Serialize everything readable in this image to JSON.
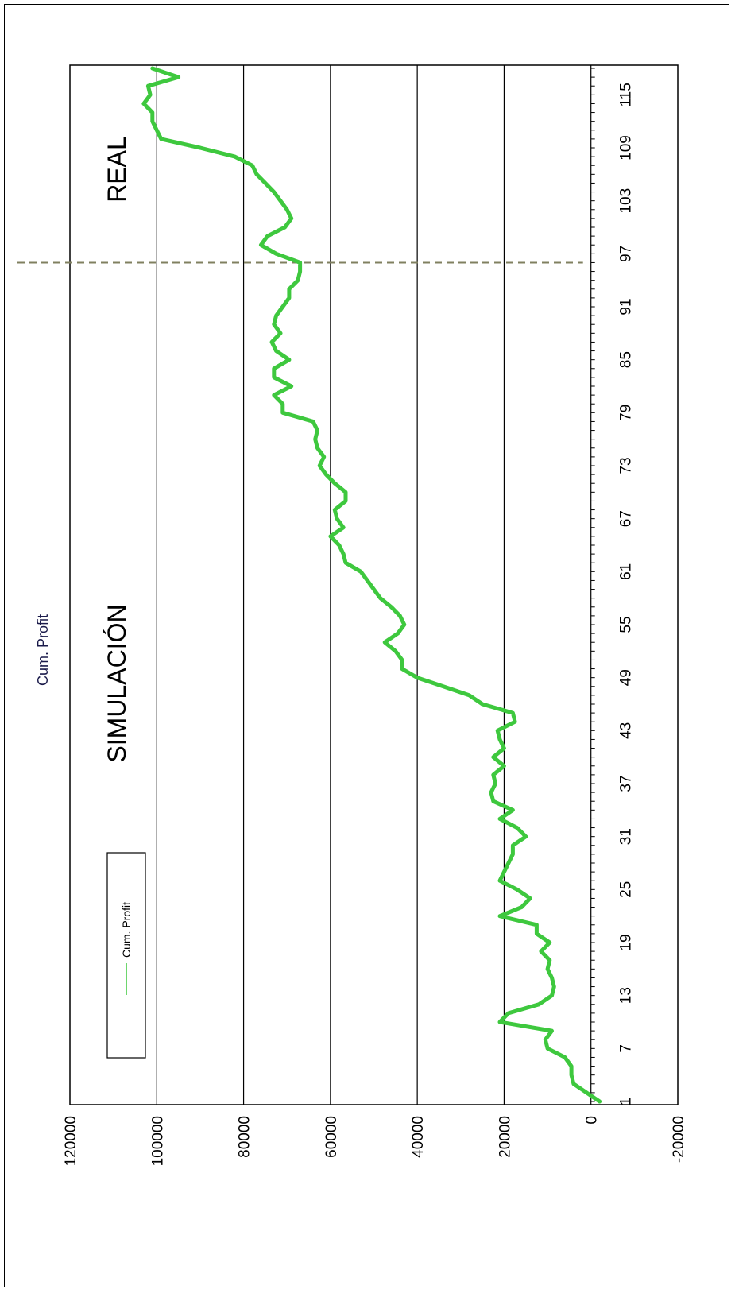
{
  "chart_data": {
    "type": "line",
    "title": "Cum. Profit",
    "orientation": "rotated-90-ccw",
    "xlabel": "",
    "ylabel": "",
    "ylim": [
      -20000,
      120000
    ],
    "yticks": [
      "-20000",
      "0",
      "20000",
      "40000",
      "60000",
      "80000",
      "100000",
      "120000"
    ],
    "xlim": [
      1,
      118
    ],
    "xticks": [
      "1",
      "7",
      "13",
      "19",
      "25",
      "31",
      "37",
      "43",
      "49",
      "55",
      "61",
      "67",
      "73",
      "79",
      "85",
      "91",
      "97",
      "103",
      "109",
      "115"
    ],
    "grid": "horizontal-major",
    "legend": {
      "position": "bottom-left",
      "entries": [
        "Cum. Profit"
      ]
    },
    "series": [
      {
        "name": "Cum. Profit",
        "color": "#3ec83e",
        "x": [
          1,
          2,
          3,
          4,
          5,
          6,
          7,
          8,
          9,
          10,
          11,
          12,
          13,
          14,
          15,
          16,
          17,
          18,
          19,
          20,
          21,
          22,
          23,
          24,
          25,
          26,
          27,
          28,
          29,
          30,
          31,
          32,
          33,
          34,
          35,
          36,
          37,
          38,
          39,
          40,
          41,
          42,
          43,
          44,
          45,
          46,
          47,
          48,
          49,
          50,
          51,
          52,
          53,
          54,
          55,
          56,
          57,
          58,
          59,
          60,
          61,
          62,
          63,
          64,
          65,
          66,
          67,
          68,
          69,
          70,
          71,
          72,
          73,
          74,
          75,
          76,
          77,
          78,
          79,
          80,
          81,
          82,
          83,
          84,
          85,
          86,
          87,
          88,
          89,
          90,
          91,
          92,
          93,
          94,
          95,
          96,
          97,
          98,
          99,
          100,
          101,
          102,
          103,
          104,
          105,
          106,
          107,
          108,
          109,
          110,
          111,
          112,
          113,
          114,
          115,
          116,
          117,
          118
        ],
        "values": [
          -2000,
          1000,
          4000,
          4500,
          4500,
          6000,
          10000,
          10500,
          9000,
          21000,
          19000,
          12000,
          9000,
          8500,
          9000,
          10000,
          9500,
          11500,
          9500,
          12500,
          12500,
          21000,
          16000,
          14000,
          17000,
          21000,
          20000,
          19000,
          18000,
          18000,
          15000,
          17000,
          21000,
          18000,
          22500,
          23000,
          22000,
          22500,
          20000,
          22500,
          20000,
          21000,
          21500,
          17500,
          18000,
          25000,
          28000,
          34000,
          40000,
          43500,
          43500,
          45000,
          47500,
          44500,
          43000,
          44000,
          46000,
          48500,
          50000,
          51500,
          53000,
          56500,
          57000,
          58000,
          60000,
          57000,
          58500,
          59000,
          56500,
          56500,
          59000,
          61000,
          62500,
          61500,
          63000,
          63500,
          63000,
          64000,
          71000,
          71000,
          73000,
          69000,
          73000,
          73000,
          69500,
          72500,
          73500,
          71500,
          73000,
          72500,
          71000,
          69500,
          69500,
          67500,
          67000,
          67000,
          72500,
          76000,
          74500,
          70500,
          69000,
          70000,
          71500,
          73000,
          75000,
          77000,
          78000,
          82000,
          90000,
          99000,
          100000,
          101000,
          101000,
          103000,
          101500,
          102000,
          95000,
          101000
        ]
      }
    ],
    "annotations": [
      {
        "text": "SIMULACIÓN"
      },
      {
        "text": "REAL"
      }
    ],
    "reference_lines": [
      {
        "axis": "x",
        "value": 96,
        "style": "dashed",
        "color": "#808060"
      }
    ]
  }
}
